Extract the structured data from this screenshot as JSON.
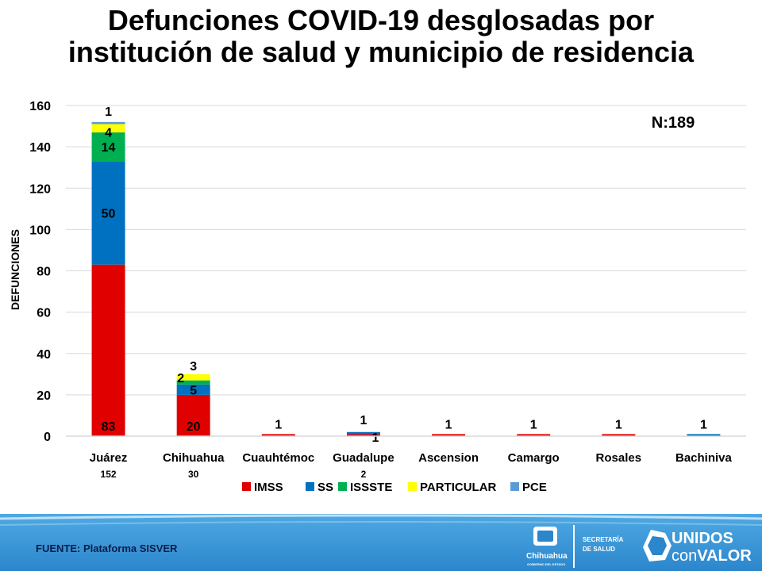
{
  "title_line1": "Defunciones COVID-19 desglosadas por",
  "title_line2": "institución de salud y municipio de residencia",
  "footer": {
    "source": "FUENTE: Plataforma SISVER",
    "logo_state": "Chihuahua",
    "logo_state_sub": "GOBIERNO DEL ESTADO",
    "logo_secretaria_1": "SECRETARÍA",
    "logo_secretaria_2": "DE SALUD",
    "logo_unidos_1": "UNIDOS",
    "logo_unidos_2a": "con",
    "logo_unidos_2b": "VALOR"
  },
  "chart_data": {
    "type": "bar",
    "stacked": true,
    "ylabel": "DEFUNCIONES",
    "ylim": [
      0,
      160
    ],
    "yticks": [
      0,
      20,
      40,
      60,
      80,
      100,
      120,
      140,
      160
    ],
    "grid": true,
    "annotation": "N:189",
    "legend_position": "bottom",
    "categories": [
      "Juárez",
      "Chihuahua",
      "Cuauhtémoc",
      "Guadalupe",
      "Ascension",
      "Camargo",
      "Rosales",
      "Bachiniva"
    ],
    "totals": [
      "152",
      "30",
      "",
      "2",
      "",
      "",
      "",
      ""
    ],
    "series": [
      {
        "name": "IMSS",
        "color": "#e00000",
        "values": [
          83,
          20,
          1,
          1,
          1,
          1,
          1,
          0
        ]
      },
      {
        "name": "SS",
        "color": "#0070c0",
        "values": [
          50,
          5,
          0,
          1,
          0,
          0,
          0,
          1
        ]
      },
      {
        "name": "ISSSTE",
        "color": "#00b050",
        "values": [
          14,
          2,
          0,
          0,
          0,
          0,
          0,
          0
        ]
      },
      {
        "name": "PARTICULAR",
        "color": "#ffff00",
        "values": [
          4,
          3,
          0,
          0,
          0,
          0,
          0,
          0
        ]
      },
      {
        "name": "PCE",
        "color": "#5b9bd5",
        "values": [
          1,
          0,
          0,
          0,
          0,
          0,
          0,
          0
        ]
      }
    ],
    "data_labels": [
      {
        "category": 0,
        "series": "IMSS",
        "text": "83"
      },
      {
        "category": 0,
        "series": "SS",
        "text": "50"
      },
      {
        "category": 0,
        "series": "ISSSTE",
        "text": "14"
      },
      {
        "category": 0,
        "series": "PARTICULAR",
        "text": "4"
      },
      {
        "category": 0,
        "series": "PCE",
        "text": "1"
      },
      {
        "category": 1,
        "series": "IMSS",
        "text": "20"
      },
      {
        "category": 1,
        "series": "SS",
        "text": "5"
      },
      {
        "category": 1,
        "series": "ISSSTE",
        "text": "2"
      },
      {
        "category": 1,
        "series": "PARTICULAR",
        "text": "3"
      },
      {
        "category": 2,
        "series": "IMSS",
        "text": "1"
      },
      {
        "category": 3,
        "series": "IMSS",
        "text": "1"
      },
      {
        "category": 3,
        "series": "SS",
        "text": "1"
      },
      {
        "category": 4,
        "series": "IMSS",
        "text": "1"
      },
      {
        "category": 5,
        "series": "IMSS",
        "text": "1"
      },
      {
        "category": 6,
        "series": "IMSS",
        "text": "1"
      },
      {
        "category": 7,
        "series": "SS",
        "text": "1"
      }
    ]
  }
}
